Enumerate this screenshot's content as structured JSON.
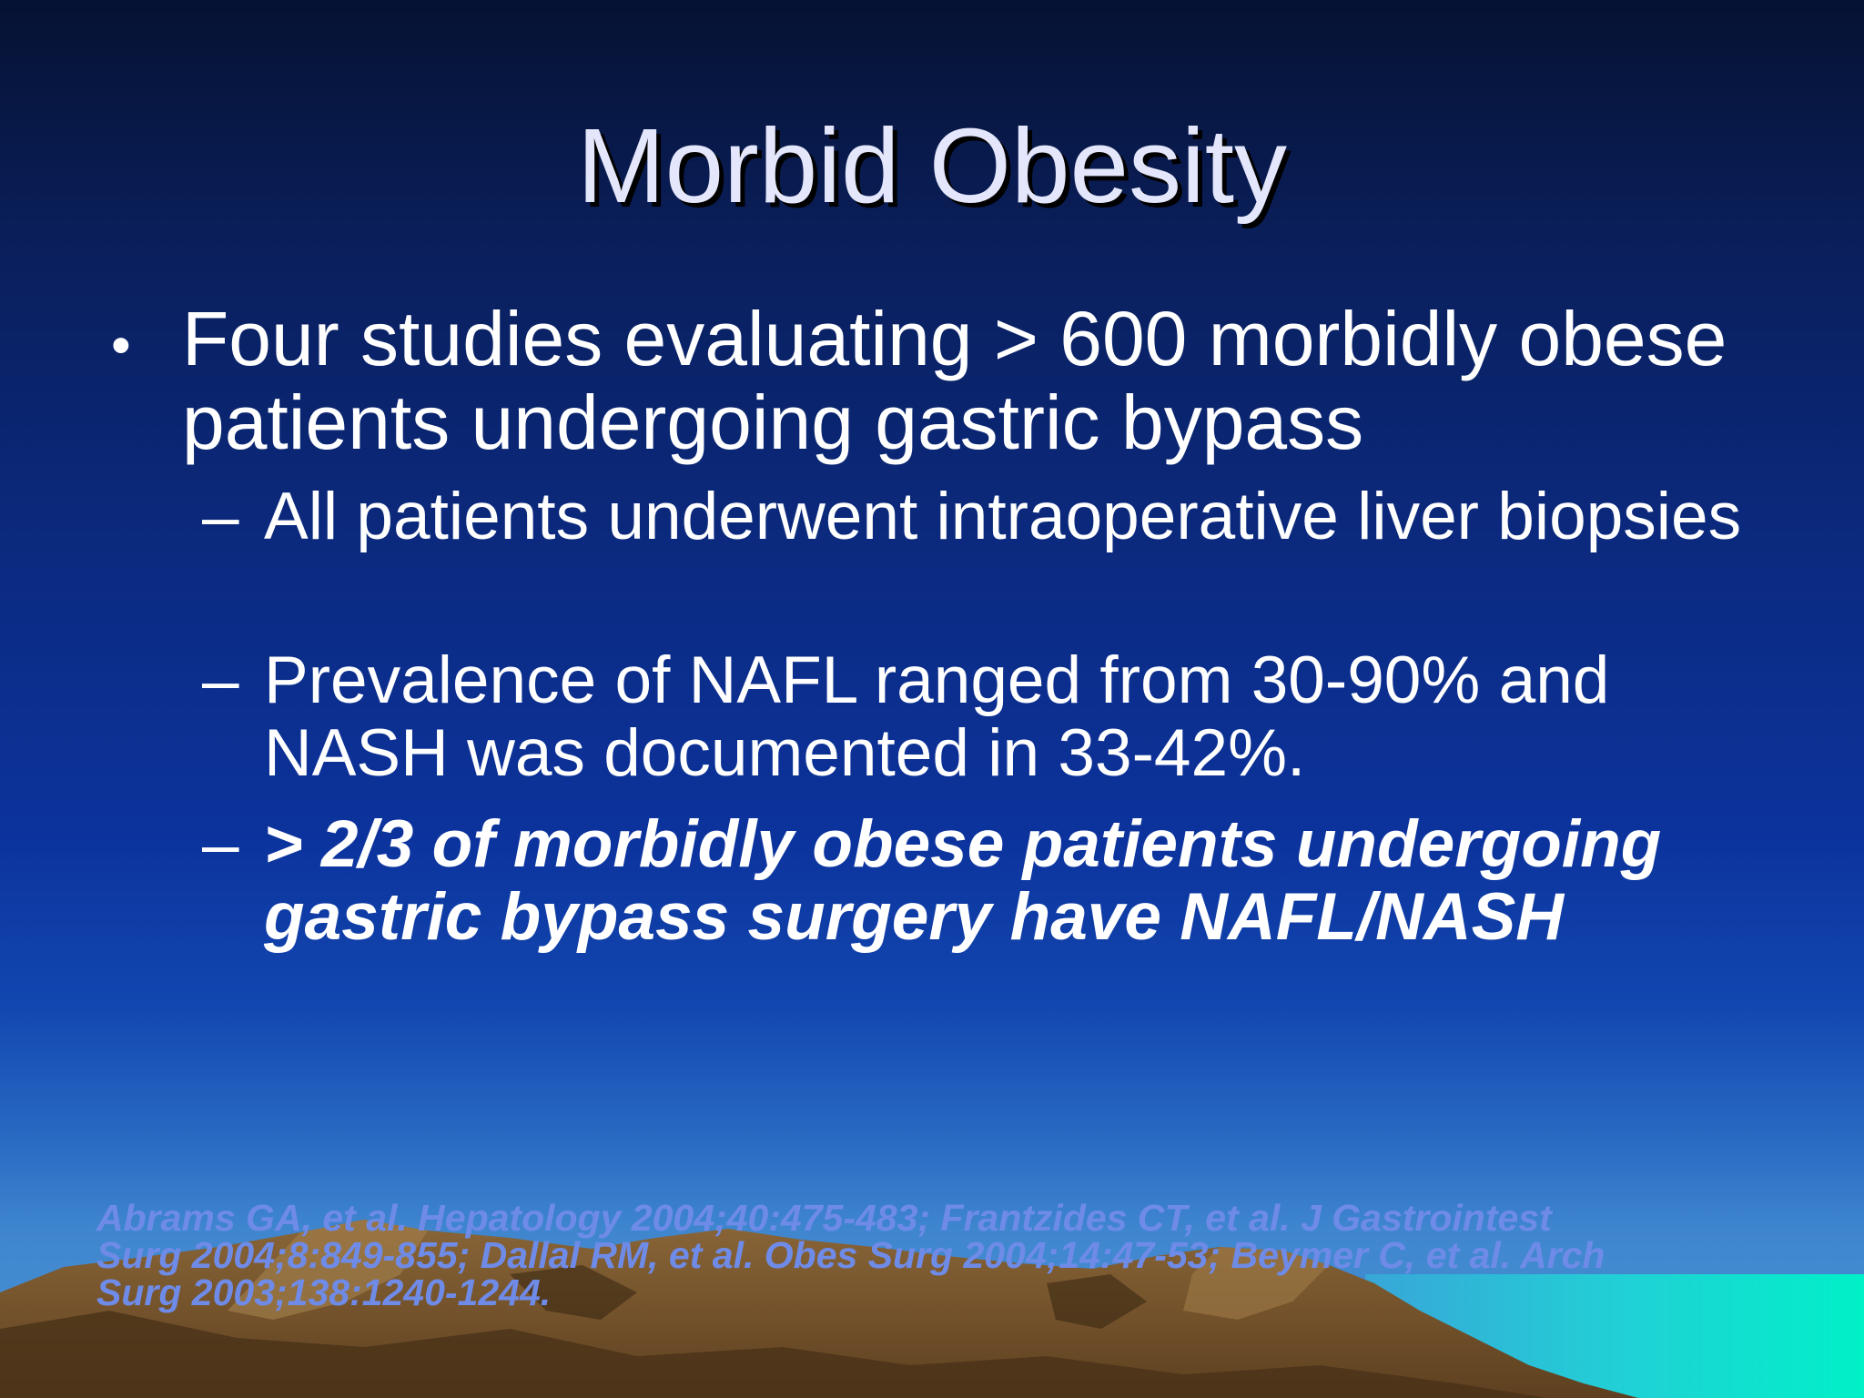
{
  "slide": {
    "title": "Morbid Obesity",
    "bullet": {
      "symbol": "•",
      "text": "Four studies evaluating > 600 morbidly obese patients undergoing gastric bypass"
    },
    "sub_bullets": [
      {
        "dash": "–",
        "text": "All patients underwent intraoperative liver biopsies"
      },
      {
        "dash": "–",
        "text": "Prevalence of NAFL ranged from 30-90% and NASH was documented in 33-42%."
      },
      {
        "dash": "–",
        "text": "> 2/3 of morbidly obese patients undergoing gastric bypass surgery have NAFL/NASH"
      }
    ],
    "citation": "Abrams GA, et al.  Hepatology 2004;40:475-483; Frantzides CT, et al.  J Gastrointest Surg 2004;8:849-855; Dallal RM, et al. Obes Surg 2004;14:47-53; Beymer C, et al.  Arch Surg 2003;138:1240-1244."
  },
  "colors": {
    "title": "#e4e6fb",
    "body_text": "#ffffff",
    "citation": "#6f8be8",
    "sky_top": "#061233",
    "sky_bottom": "#4b95d4",
    "mountain": "#7a5630",
    "water": "#00e8c8"
  }
}
